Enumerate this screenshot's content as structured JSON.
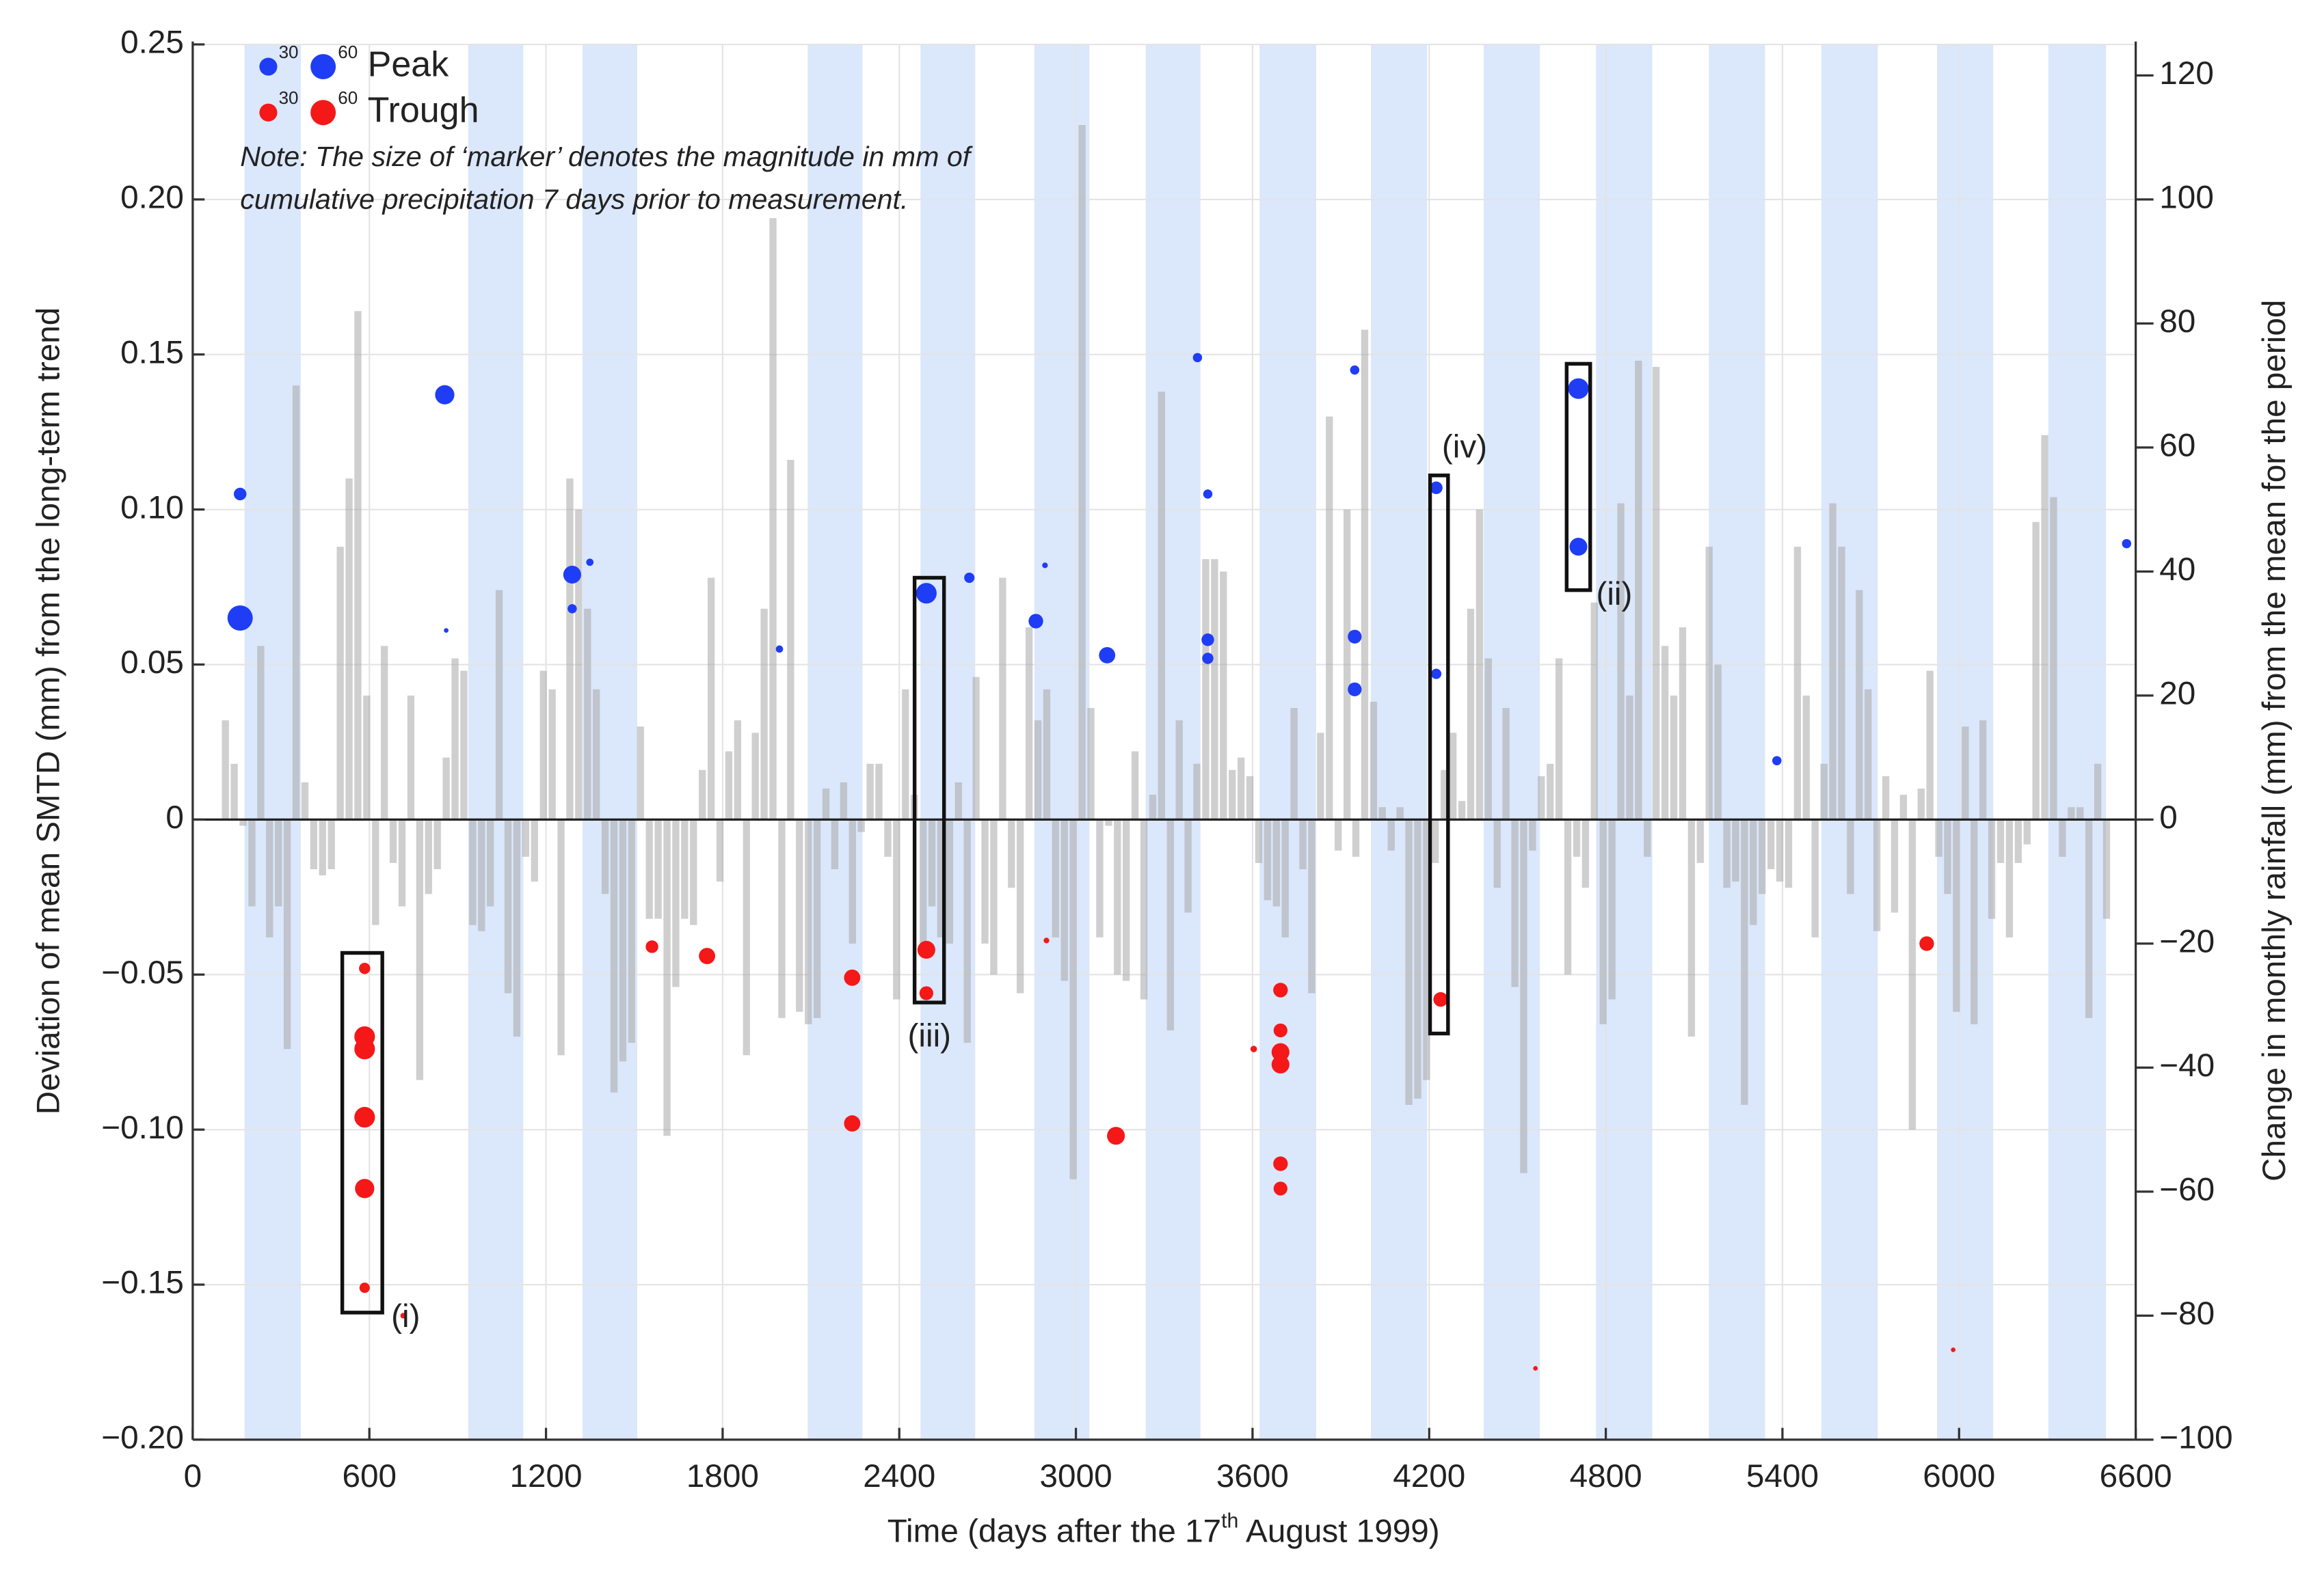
{
  "chart_data": {
    "type": "scatter",
    "xlabel": [
      "Time (days after the 17",
      "th",
      " August 1999)"
    ],
    "ylabel": "Deviation of mean SMTD (mm) from the long-term trend",
    "y2label": "Change in monthly rainfall (mm) from the mean for the period",
    "xlim": [
      0,
      6600
    ],
    "xticks": [
      0,
      600,
      1200,
      1800,
      2400,
      3000,
      3600,
      4200,
      4800,
      5400,
      6000,
      6600
    ],
    "ylim": [
      -0.2,
      0.25
    ],
    "yticks": [
      {
        "value": -0.2,
        "label": "−0.20"
      },
      {
        "value": -0.15,
        "label": "−0.15"
      },
      {
        "value": -0.1,
        "label": "−0.10"
      },
      {
        "value": -0.05,
        "label": "−0.05"
      },
      0,
      0.05,
      {
        "value": 0.1,
        "label": "0.10"
      },
      0.15,
      {
        "value": 0.2,
        "label": "0.20"
      },
      0.25
    ],
    "y2lim": [
      -100,
      125
    ],
    "y2ticks": [
      {
        "value": -100,
        "label": "−100"
      },
      {
        "value": -80,
        "label": "−80"
      },
      {
        "value": -60,
        "label": "−60"
      },
      {
        "value": -40,
        "label": "−40"
      },
      {
        "value": -20,
        "label": "−20"
      },
      0,
      20,
      40,
      60,
      80,
      100,
      120
    ],
    "grid": true,
    "legend_sizes": [
      30,
      60
    ],
    "note": [
      "Note: The size of ‘marker’ denotes the magnitude in mm of",
      "cumulative precipitation 7 days prior to measurement."
    ],
    "band_color": "#dbe7fb",
    "shaded_periods": [
      [
        176,
        367
      ],
      [
        936,
        1123
      ],
      [
        1324,
        1510
      ],
      [
        2089,
        2275
      ],
      [
        2472,
        2658
      ],
      [
        2859,
        3046
      ],
      [
        3237,
        3423
      ],
      [
        3624,
        3816
      ],
      [
        4002,
        4193
      ],
      [
        4385,
        4576
      ],
      [
        4767,
        4958
      ],
      [
        5150,
        5341
      ],
      [
        5532,
        5724
      ],
      [
        5925,
        6116
      ],
      [
        6303,
        6499
      ]
    ],
    "series": [
      {
        "name": "Peak",
        "color": "#1f3df5",
        "x": [
          161,
          161,
          856,
          861,
          1289,
          1289,
          1349,
          1993,
          2492,
          2638,
          2895,
          2864,
          3106,
          3413,
          3448,
          3448,
          3448,
          3947,
          3947,
          3947,
          4224,
          4224,
          4707,
          4707,
          5381,
          6569
        ],
        "values": [
          0.105,
          0.065,
          0.137,
          0.061,
          0.079,
          0.068,
          0.083,
          0.055,
          0.073,
          0.078,
          0.082,
          0.064,
          0.053,
          0.149,
          0.105,
          0.058,
          0.052,
          0.145,
          0.059,
          0.042,
          0.107,
          0.047,
          0.139,
          0.088,
          0.019,
          0.089
        ],
        "sizes": [
          15,
          60,
          35,
          2,
          30,
          8,
          5,
          5,
          40,
          10,
          3,
          20,
          25,
          8,
          8,
          15,
          12,
          8,
          18,
          18,
          15,
          10,
          40,
          30,
          8,
          8
        ]
      },
      {
        "name": "Trough",
        "color": "#f41818",
        "x": [
          584,
          584,
          584,
          584,
          584,
          584,
          715,
          1560,
          1747,
          2240,
          2240,
          2492,
          2492,
          2900,
          3136,
          3604,
          3695,
          3695,
          3695,
          3695,
          3695,
          3695,
          4239,
          4561,
          5890,
          5980
        ],
        "values": [
          -0.048,
          -0.07,
          -0.074,
          -0.096,
          -0.119,
          -0.151,
          -0.16,
          -0.041,
          -0.044,
          -0.051,
          -0.098,
          -0.042,
          -0.056,
          -0.039,
          -0.102,
          -0.074,
          -0.055,
          -0.068,
          -0.075,
          -0.079,
          -0.111,
          -0.119,
          -0.058,
          -0.177,
          -0.04,
          -0.171
        ],
        "sizes": [
          12,
          40,
          40,
          40,
          35,
          10,
          3,
          15,
          25,
          25,
          25,
          30,
          18,
          3,
          30,
          4,
          20,
          18,
          30,
          30,
          20,
          18,
          20,
          2,
          20,
          2
        ]
      },
      {
        "type": "bar",
        "axis": "y2",
        "color": "#a8a8a8",
        "x": [
          111,
          141,
          171,
          201,
          231,
          261,
          291,
          321,
          351,
          381,
          411,
          441,
          471,
          501,
          531,
          561,
          591,
          621,
          651,
          681,
          711,
          741,
          771,
          801,
          831,
          861,
          891,
          921,
          951,
          981,
          1011,
          1041,
          1071,
          1101,
          1131,
          1161,
          1191,
          1221,
          1251,
          1281,
          1311,
          1341,
          1371,
          1401,
          1431,
          1461,
          1491,
          1521,
          1551,
          1581,
          1611,
          1641,
          1671,
          1701,
          1731,
          1761,
          1791,
          1821,
          1851,
          1881,
          1911,
          1941,
          1971,
          2001,
          2031,
          2061,
          2091,
          2121,
          2151,
          2181,
          2211,
          2241,
          2271,
          2301,
          2331,
          2361,
          2391,
          2421,
          2451,
          2481,
          2511,
          2541,
          2571,
          2601,
          2631,
          2661,
          2691,
          2721,
          2751,
          2781,
          2811,
          2841,
          2871,
          2901,
          2931,
          2961,
          2991,
          3021,
          3051,
          3081,
          3111,
          3141,
          3171,
          3201,
          3231,
          3261,
          3291,
          3321,
          3351,
          3381,
          3411,
          3441,
          3471,
          3501,
          3531,
          3561,
          3591,
          3621,
          3651,
          3681,
          3711,
          3741,
          3771,
          3801,
          3831,
          3861,
          3891,
          3921,
          3951,
          3981,
          4011,
          4041,
          4071,
          4101,
          4131,
          4161,
          4191,
          4221,
          4251,
          4281,
          4311,
          4341,
          4371,
          4401,
          4431,
          4461,
          4491,
          4521,
          4551,
          4581,
          4611,
          4641,
          4671,
          4701,
          4731,
          4761,
          4791,
          4821,
          4851,
          4881,
          4911,
          4941,
          4971,
          5001,
          5031,
          5061,
          5091,
          5121,
          5151,
          5181,
          5211,
          5241,
          5271,
          5301,
          5331,
          5361,
          5391,
          5421,
          5451,
          5481,
          5511,
          5541,
          5571,
          5601,
          5631,
          5661,
          5691,
          5721,
          5751,
          5781,
          5811,
          5841,
          5871,
          5901,
          5931,
          5961,
          5991,
          6021,
          6051,
          6081,
          6111,
          6141,
          6171,
          6201,
          6231,
          6261,
          6291,
          6321,
          6351,
          6381,
          6411,
          6441,
          6471,
          6501
        ],
        "values": [
          16,
          9,
          -1,
          -14,
          28,
          -19,
          -14,
          -37,
          70,
          6,
          -8,
          -9,
          -8,
          44,
          55,
          82,
          20,
          -17,
          28,
          -7,
          -14,
          20,
          -42,
          -12,
          -8,
          10,
          26,
          24,
          -17,
          -18,
          -14,
          37,
          -28,
          -35,
          -6,
          -10,
          24,
          21,
          -38,
          55,
          50,
          34,
          21,
          -12,
          -44,
          -39,
          -36,
          15,
          -16,
          -16,
          -51,
          -27,
          -16,
          -17,
          8,
          39,
          -10,
          11,
          16,
          -38,
          14,
          34,
          97,
          -32,
          58,
          -31,
          -33,
          -32,
          5,
          -8,
          6,
          -20,
          -2,
          9,
          9,
          -6,
          -29,
          21,
          4,
          -20,
          -14,
          -19,
          -20,
          6,
          -36,
          23,
          -20,
          -25,
          39,
          -11,
          -28,
          31,
          16,
          21,
          -19,
          -26,
          -58,
          112,
          18,
          -19,
          -1,
          -25,
          -26,
          11,
          -29,
          4,
          69,
          -34,
          16,
          -15,
          9,
          42,
          42,
          40,
          8,
          10,
          7,
          -7,
          -13,
          -14,
          -19,
          18,
          -8,
          -28,
          14,
          65,
          -5,
          50,
          -6,
          79,
          19,
          2,
          -5,
          2,
          -46,
          -45,
          -42,
          -7,
          8,
          14,
          3,
          34,
          50,
          26,
          -11,
          18,
          -27,
          -57,
          -5,
          7,
          9,
          26,
          -25,
          -6,
          -11,
          35,
          -33,
          -29,
          51,
          20,
          74,
          -6,
          73,
          28,
          20,
          31,
          -35,
          -7,
          44,
          25,
          -11,
          -10,
          -46,
          -17,
          -12,
          -8,
          -10,
          -11,
          44,
          20,
          -19,
          9,
          51,
          44,
          -12,
          37,
          21,
          -18,
          7,
          -15,
          4,
          -50,
          5,
          24,
          -6,
          -12,
          -31,
          15,
          -33,
          16,
          -16,
          -7,
          -19,
          -7,
          -4,
          48,
          62,
          52,
          -6,
          2,
          2,
          -32,
          9,
          -16
        ]
      }
    ],
    "annotations": [
      {
        "text": "(i)",
        "x": [
          508,
          644
        ],
        "y": [
          -0.159,
          -0.043
        ]
      },
      {
        "text": "(ii)",
        "x": [
          4667,
          4747
        ],
        "y": [
          0.074,
          0.147
        ]
      },
      {
        "text": "(iii)",
        "x": [
          2452,
          2552
        ],
        "y": [
          -0.059,
          0.078
        ]
      },
      {
        "text": "(iv)",
        "x": [
          4203,
          4264
        ],
        "y": [
          -0.069,
          0.111
        ]
      }
    ]
  }
}
